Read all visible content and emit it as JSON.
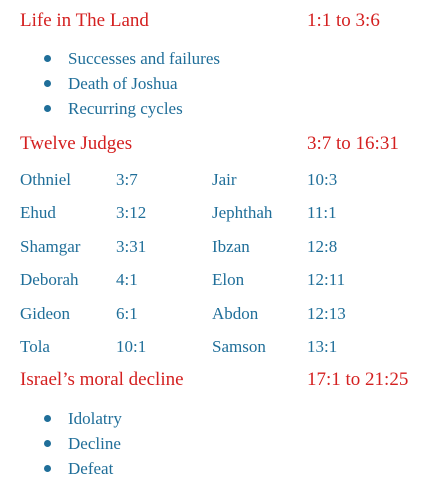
{
  "sections": [
    {
      "title": "Life in The Land",
      "reference": "1:1 to 3:6",
      "bullets": [
        "Successes and failures",
        "Death of Joshua",
        "Recurring cycles"
      ]
    },
    {
      "title": "Twelve Judges",
      "reference": "3:7 to 16:31"
    },
    {
      "title": "Israel’s moral decline",
      "reference": "17:1 to 21:25",
      "bullets": [
        "Idolatry",
        "Decline",
        "Defeat"
      ]
    }
  ],
  "judges": [
    {
      "name": "Othniel",
      "ref": "3:7",
      "name2": "Jair",
      "ref2": "10:3"
    },
    {
      "name": "Ehud",
      "ref": "3:12",
      "name2": "Jephthah",
      "ref2": "11:1"
    },
    {
      "name": "Shamgar",
      "ref": "3:31",
      "name2": "Ibzan",
      "ref2": "12:8"
    },
    {
      "name": "Deborah",
      "ref": "4:1",
      "name2": "Elon",
      "ref2": "12:11"
    },
    {
      "name": "Gideon",
      "ref": "6:1",
      "name2": "Abdon",
      "ref2": "12:13"
    },
    {
      "name": "Tola",
      "ref": "10:1",
      "name2": "Samson",
      "ref2": "13:1"
    }
  ],
  "colors": {
    "heading": "#d42020",
    "body": "#1f6e99",
    "background": "#ffffff"
  }
}
